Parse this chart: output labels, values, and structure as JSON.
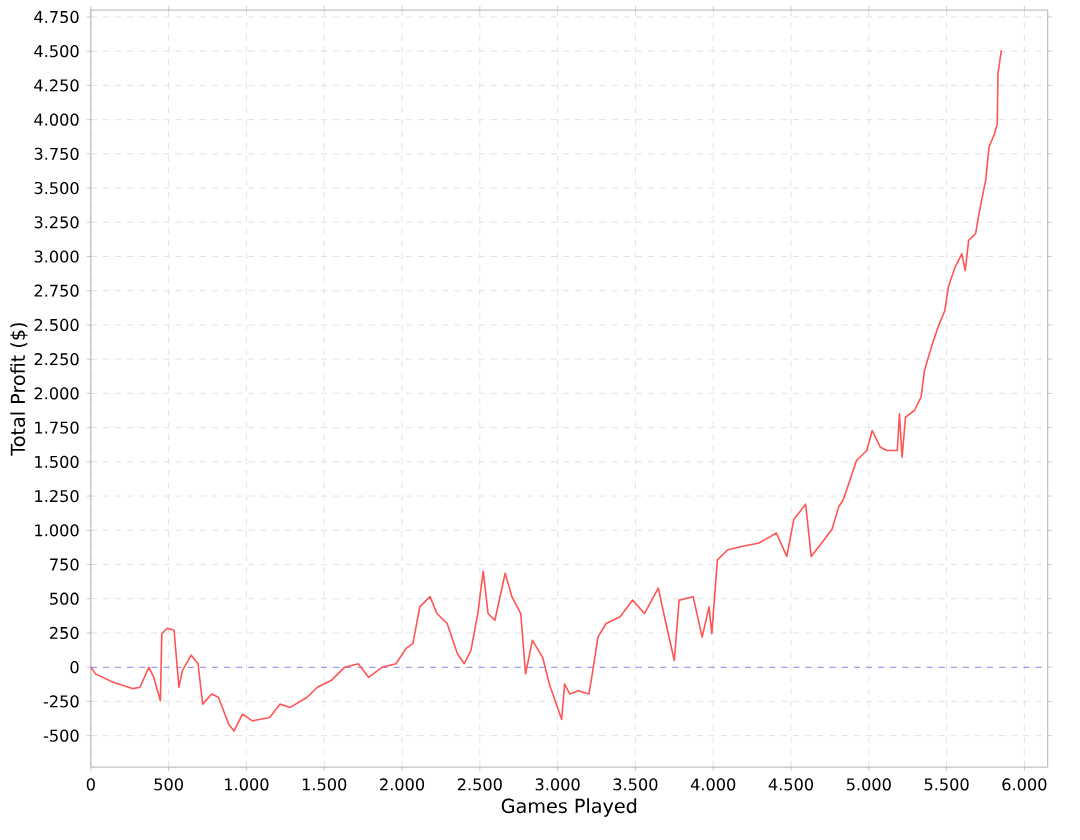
{
  "chart_data": {
    "type": "line",
    "xlabel": "Games Played",
    "ylabel": "Total Profit ($)",
    "x": [
      0,
      30,
      140,
      272,
      316,
      373,
      404,
      447,
      456,
      491,
      535,
      544,
      566,
      588,
      645,
      689,
      719,
      776,
      820,
      886,
      921,
      974,
      1039,
      1149,
      1215,
      1281,
      1390,
      1456,
      1544,
      1632,
      1719,
      1785,
      1873,
      1961,
      2026,
      2070,
      2114,
      2180,
      2224,
      2290,
      2356,
      2400,
      2443,
      2487,
      2522,
      2553,
      2597,
      2663,
      2706,
      2763,
      2794,
      2838,
      2903,
      2947,
      3026,
      3045,
      3079,
      3134,
      3201,
      3223,
      3259,
      3312,
      3402,
      3482,
      3558,
      3647,
      3692,
      3750,
      3781,
      3871,
      3929,
      3973,
      3991,
      4027,
      4094,
      4183,
      4295,
      4406,
      4473,
      4518,
      4594,
      4630,
      4697,
      4763,
      4808,
      4834,
      4878,
      4921,
      4987,
      5022,
      5074,
      5118,
      5183,
      5197,
      5214,
      5236,
      5293,
      5336,
      5358,
      5402,
      5445,
      5489,
      5511,
      5555,
      5598,
      5620,
      5642,
      5686,
      5708,
      5751,
      5773,
      5808,
      5826,
      5830,
      5852
    ],
    "series": [
      {
        "color": "#ff5555",
        "values": [
          0,
          -49,
          -108,
          -157,
          -147,
          0,
          -74,
          -245,
          245,
          284,
          270,
          147,
          -147,
          -25,
          88,
          25,
          -270,
          -196,
          -220,
          -417,
          -466,
          -343,
          -392,
          -368,
          -270,
          -294,
          -220,
          -147,
          -98,
          0,
          25,
          -74,
          0,
          25,
          137,
          172,
          441,
          515,
          392,
          319,
          98,
          25,
          122,
          392,
          701,
          392,
          343,
          686,
          515,
          392,
          -49,
          196,
          74,
          -123,
          -382,
          -123,
          -196,
          -172,
          -196,
          -49,
          220,
          319,
          368,
          490,
          392,
          578,
          343,
          49,
          490,
          515,
          220,
          441,
          245,
          784,
          858,
          882,
          907,
          980,
          809,
          1078,
          1191,
          809,
          907,
          1005,
          1176,
          1217,
          1363,
          1510,
          1583,
          1729,
          1607,
          1583,
          1583,
          1850,
          1534,
          1826,
          1875,
          1972,
          2167,
          2338,
          2484,
          2606,
          2777,
          2923,
          3020,
          2898,
          3118,
          3166,
          3312,
          3556,
          3800,
          3897,
          3970,
          4336,
          4506
        ]
      }
    ],
    "xlim": [
      0,
      6150
    ],
    "ylim": [
      -730,
      4800
    ],
    "xticks": [
      0,
      500,
      {
        "value": 1000,
        "label": "1.000"
      },
      {
        "value": 1500,
        "label": "1.500"
      },
      {
        "value": 2000,
        "label": "2.000"
      },
      {
        "value": 2500,
        "label": "2.500"
      },
      {
        "value": 3000,
        "label": "3.000"
      },
      {
        "value": 3500,
        "label": "3.500"
      },
      {
        "value": 4000,
        "label": "4.000"
      },
      {
        "value": 4500,
        "label": "4.500"
      },
      {
        "value": 5000,
        "label": "5.000"
      },
      {
        "value": 5500,
        "label": "5.500"
      },
      {
        "value": 6000,
        "label": "6.000"
      }
    ],
    "yticks": [
      -500,
      -250,
      0,
      250,
      500,
      750,
      {
        "value": 1000,
        "label": "1.000"
      },
      {
        "value": 1250,
        "label": "1.250"
      },
      {
        "value": 1500,
        "label": "1.500"
      },
      {
        "value": 1750,
        "label": "1.750"
      },
      {
        "value": 2000,
        "label": "2.000"
      },
      {
        "value": 2250,
        "label": "2.250"
      },
      {
        "value": 2500,
        "label": "2.500"
      },
      {
        "value": 2750,
        "label": "2.750"
      },
      {
        "value": 3000,
        "label": "3.000"
      },
      {
        "value": 3250,
        "label": "3.250"
      },
      {
        "value": 3500,
        "label": "3.500"
      },
      {
        "value": 3750,
        "label": "3.750"
      },
      {
        "value": 4000,
        "label": "4.000"
      },
      {
        "value": 4250,
        "label": "4.250"
      },
      {
        "value": 4500,
        "label": "4.500"
      },
      {
        "value": 4750,
        "label": "4.750"
      }
    ],
    "ref_lines": [
      {
        "axis": "y",
        "value": 0,
        "color": "#5555ff",
        "line_style": "dashed"
      }
    ],
    "grid": true,
    "marker": "none",
    "line_style": "solid"
  }
}
